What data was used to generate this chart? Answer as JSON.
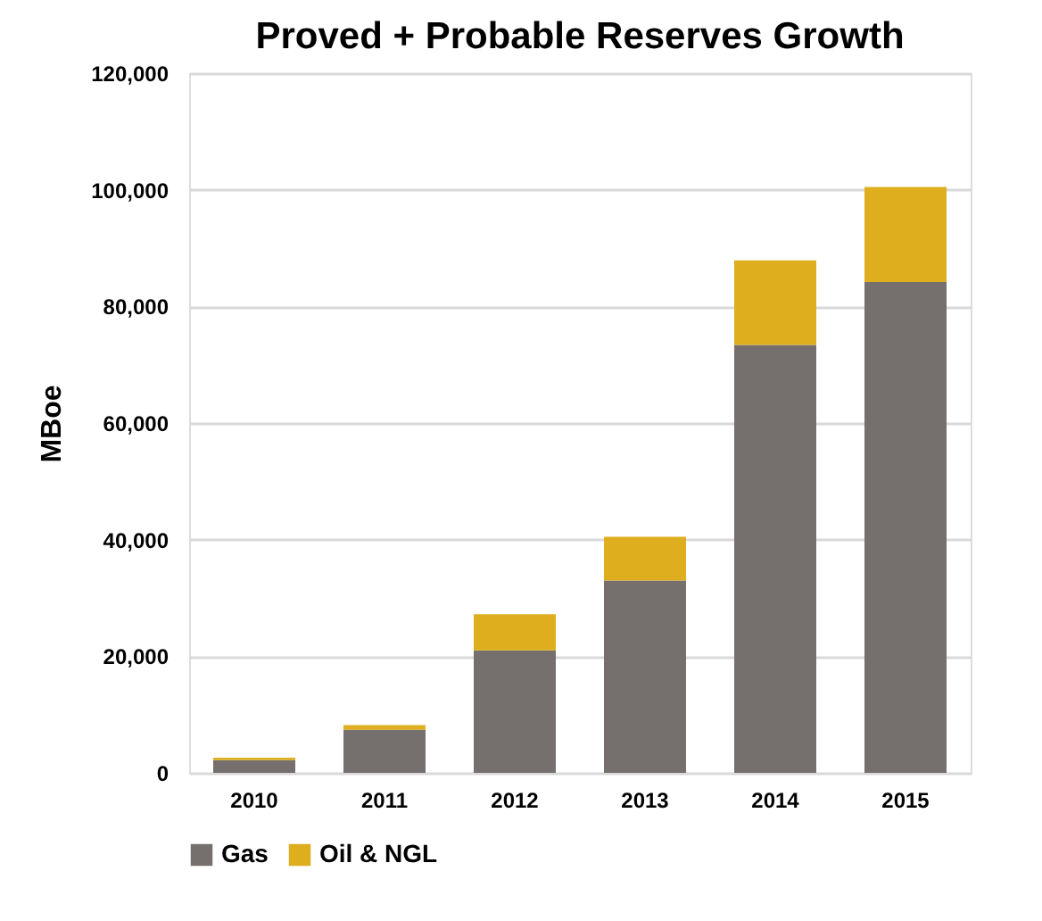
{
  "chart_data": {
    "type": "bar",
    "title": "Proved + Probable Reserves Growth",
    "ylabel": "MBoe",
    "categories": [
      "2010",
      "2011",
      "2012",
      "2013",
      "2014",
      "2015"
    ],
    "series": [
      {
        "name": "Gas",
        "color": "#75706e",
        "values": [
          2200,
          7400,
          21000,
          33000,
          73400,
          84200
        ]
      },
      {
        "name": "Oil & NGL",
        "color": "#deae1e",
        "values": [
          400,
          800,
          6200,
          7500,
          14500,
          16300
        ]
      }
    ],
    "stacked": true,
    "ylim": [
      0,
      120000
    ],
    "yticks": [
      0,
      {
        "value": 20000,
        "label": "20,000"
      },
      {
        "value": 40000,
        "label": "40,000"
      },
      {
        "value": 60000,
        "label": "60,000"
      },
      {
        "value": 80000,
        "label": "80,000"
      },
      {
        "value": 100000,
        "label": "100,000"
      },
      {
        "value": 120000,
        "label": "120,000"
      }
    ],
    "grid": "y",
    "legend": "bottom"
  }
}
